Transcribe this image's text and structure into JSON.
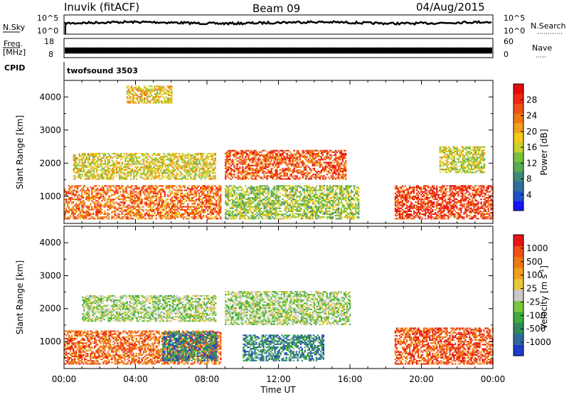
{
  "header": {
    "title": "Inuvik (fitACF)",
    "beam": "Beam 09",
    "date": "04/Aug/2015"
  },
  "status_panels": {
    "nsky_label": "N.Sky",
    "nsky_ticks": [
      "10^5",
      "10^0"
    ],
    "nsearch_label": "N.Search",
    "nsearch_ticks": [
      "10^5",
      "10^0"
    ],
    "freq_label_1": "Freq.",
    "freq_label_2": "[MHz]",
    "freq_ticks": [
      "18",
      "8"
    ],
    "nave_label": "Nave",
    "nave_ticks": [
      "60",
      "0"
    ],
    "cpid_label": "CPID",
    "cpid_value": "twofsound 3503"
  },
  "chart_data": [
    {
      "type": "heatmap",
      "name": "power",
      "ylabel": "Slant Range [km]",
      "ylim": [
        180,
        4500
      ],
      "y_ticks": [
        1000,
        2000,
        3000,
        4000
      ],
      "colorbar_label": "Power [dB]",
      "colorbar_ticks": [
        4,
        8,
        12,
        16,
        20,
        24,
        28
      ],
      "colorbar_colors": [
        "#1414f5",
        "#1e50c8",
        "#2e6fa0",
        "#3c8a78",
        "#5aaa50",
        "#78c23c",
        "#c8d22a",
        "#f0c81e",
        "#f0a01e",
        "#f07814",
        "#f05014",
        "#f02814",
        "#e60a0a"
      ],
      "regions": [
        {
          "t0": 0.0,
          "t1": 8.8,
          "r0": 300,
          "r1": 1300,
          "level": 0.75
        },
        {
          "t0": 0.5,
          "t1": 8.5,
          "r0": 1500,
          "r1": 2300,
          "level": 0.55
        },
        {
          "t0": 9.0,
          "t1": 15.8,
          "r0": 1500,
          "r1": 2400,
          "level": 0.8
        },
        {
          "t0": 9.0,
          "t1": 16.5,
          "r0": 300,
          "r1": 1300,
          "level": 0.45
        },
        {
          "t0": 18.5,
          "t1": 24.0,
          "r0": 300,
          "r1": 1300,
          "level": 0.85
        },
        {
          "t0": 3.5,
          "t1": 6.0,
          "r0": 3800,
          "r1": 4300,
          "level": 0.6
        },
        {
          "t0": 21.0,
          "t1": 23.5,
          "r0": 1700,
          "r1": 2500,
          "level": 0.5
        }
      ]
    },
    {
      "type": "heatmap",
      "name": "velocity",
      "ylabel": "Slant Range [km]",
      "ylim": [
        180,
        4500
      ],
      "y_ticks": [
        1000,
        2000,
        3000,
        4000
      ],
      "colorbar_label": "Velocity [m s^-1]",
      "colorbar_ticks": [
        1000,
        500,
        100,
        25,
        -25,
        -100,
        -500,
        -1000
      ],
      "colorbar_colors": [
        "#1e3cc8",
        "#2e6aa0",
        "#2e8a5a",
        "#3cac3c",
        "#78c83c",
        "#c8c8c8",
        "#e6c83c",
        "#f0a01e",
        "#f07814",
        "#f05014",
        "#e61414"
      ],
      "regions": [
        {
          "t0": 0.0,
          "t1": 8.8,
          "r0": 300,
          "r1": 1300,
          "level": 0.8
        },
        {
          "t0": 1.0,
          "t1": 8.5,
          "r0": 1600,
          "r1": 2400,
          "level": 0.45
        },
        {
          "t0": 9.0,
          "t1": 16.0,
          "r0": 1500,
          "r1": 2500,
          "level": 0.45
        },
        {
          "t0": 5.5,
          "t1": 8.5,
          "r0": 400,
          "r1": 1300,
          "level": 0.2
        },
        {
          "t0": 10.0,
          "t1": 14.5,
          "r0": 400,
          "r1": 1200,
          "level": 0.2
        },
        {
          "t0": 18.5,
          "t1": 24.0,
          "r0": 300,
          "r1": 1400,
          "level": 0.85
        }
      ]
    }
  ],
  "x_axis": {
    "xlabel": "Time UT",
    "xlim": [
      0,
      24
    ],
    "tick_labels": [
      "00:00",
      "04:00",
      "08:00",
      "12:00",
      "16:00",
      "20:00",
      "00:00"
    ]
  },
  "colors": {
    "frame": "#000000",
    "background": "#ffffff"
  }
}
